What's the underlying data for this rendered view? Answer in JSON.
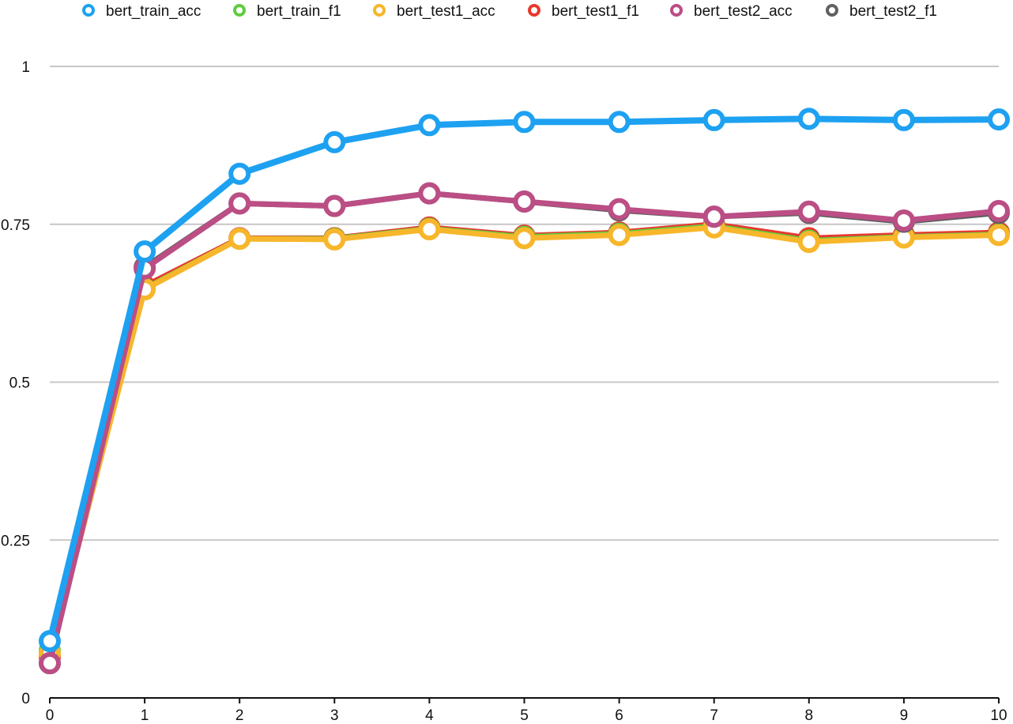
{
  "chart_data": {
    "type": "line",
    "title": "",
    "xlabel": "",
    "ylabel": "",
    "x": [
      0,
      1,
      2,
      3,
      4,
      5,
      6,
      7,
      8,
      9,
      10
    ],
    "xlim": [
      0,
      10
    ],
    "ylim": [
      0,
      1
    ],
    "x_ticks": [
      "0",
      "1",
      "2",
      "3",
      "4",
      "5",
      "6",
      "7",
      "8",
      "9",
      "10"
    ],
    "y_ticks": [
      "0",
      "0.25",
      "0.5",
      "0.75",
      "1"
    ],
    "grid": "horizontal",
    "legend_position": "top",
    "series": [
      {
        "name": "bert_train_acc",
        "color": "#1EA1F1",
        "values": [
          0.09,
          0.707,
          0.83,
          0.88,
          0.907,
          0.912,
          0.912,
          0.915,
          0.917,
          0.915,
          0.916
        ]
      },
      {
        "name": "bert_train_f1",
        "color": "#5FCD3E",
        "values": [
          0.075,
          0.648,
          0.727,
          0.727,
          0.743,
          0.73,
          0.735,
          0.747,
          0.724,
          0.73,
          0.734
        ]
      },
      {
        "name": "bert_test1_acc",
        "color": "#F7B62B",
        "values": [
          0.07,
          0.647,
          0.727,
          0.726,
          0.742,
          0.728,
          0.733,
          0.745,
          0.722,
          0.729,
          0.733
        ]
      },
      {
        "name": "bert_test1_f1",
        "color": "#E8382E",
        "values": [
          0.065,
          0.652,
          0.728,
          0.728,
          0.745,
          0.732,
          0.737,
          0.75,
          0.728,
          0.733,
          0.737
        ]
      },
      {
        "name": "bert_test2_acc",
        "color": "#BB4E85",
        "values": [
          0.055,
          0.68,
          0.783,
          0.779,
          0.799,
          0.786,
          0.774,
          0.762,
          0.77,
          0.756,
          0.771
        ]
      },
      {
        "name": "bert_test2_f1",
        "color": "#606060",
        "values": [
          0.055,
          0.682,
          0.783,
          0.779,
          0.799,
          0.786,
          0.772,
          0.762,
          0.768,
          0.754,
          0.768
        ]
      }
    ]
  }
}
